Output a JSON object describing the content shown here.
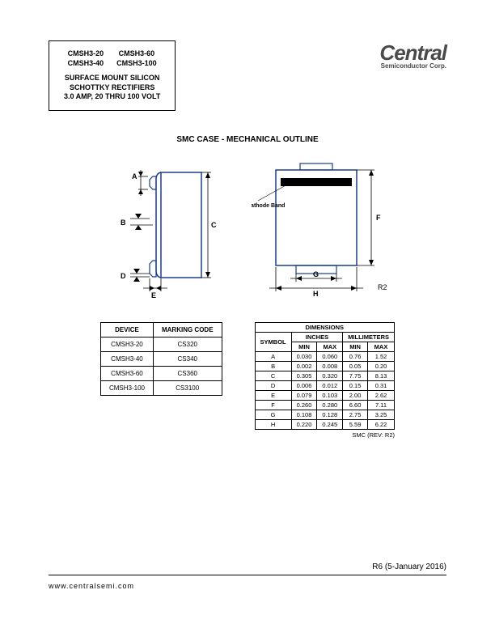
{
  "header": {
    "parts_col1": [
      "CMSH3-20",
      "CMSH3-40"
    ],
    "parts_col2": [
      "CMSH3-60",
      "CMSH3-100"
    ],
    "desc_line1": "SURFACE MOUNT SILICON",
    "desc_line2": "SCHOTTKY RECTIFIERS",
    "desc_line3": "3.0 AMP, 20 THRU 100 VOLT",
    "logo_brand": "Central",
    "logo_sub": "Semiconductor Corp."
  },
  "section_title": "SMC CASE - MECHANICAL OUTLINE",
  "drawing": {
    "outline_color": "#1a3d8f",
    "label_color": "#000000",
    "band_color": "#000000",
    "labels": {
      "A": "A",
      "B": "B",
      "C": "C",
      "D": "D",
      "E": "E",
      "F": "F",
      "G": "G",
      "H": "H",
      "R2": "R2"
    },
    "cathode_band_label": "Cathode Band"
  },
  "marking_table": {
    "headers": [
      "DEVICE",
      "MARKING CODE"
    ],
    "rows": [
      [
        "CMSH3-20",
        "CS320"
      ],
      [
        "CMSH3-40",
        "CS340"
      ],
      [
        "CMSH3-60",
        "CS360"
      ],
      [
        "CMSH3-100",
        "CS3100"
      ]
    ]
  },
  "dim_table": {
    "title": "DIMENSIONS",
    "unit_headers": [
      "INCHES",
      "MILLIMETERS"
    ],
    "sub_headers": [
      "SYMBOL",
      "MIN",
      "MAX",
      "MIN",
      "MAX"
    ],
    "rows": [
      [
        "A",
        "0.030",
        "0.060",
        "0.76",
        "1.52"
      ],
      [
        "B",
        "0.002",
        "0.008",
        "0.05",
        "0.20"
      ],
      [
        "C",
        "0.305",
        "0.320",
        "7.75",
        "8.13"
      ],
      [
        "D",
        "0.006",
        "0.012",
        "0.15",
        "0.31"
      ],
      [
        "E",
        "0.079",
        "0.103",
        "2.00",
        "2.62"
      ],
      [
        "F",
        "0.260",
        "0.280",
        "6.60",
        "7.11"
      ],
      [
        "G",
        "0.108",
        "0.128",
        "2.75",
        "3.25"
      ],
      [
        "H",
        "0.220",
        "0.245",
        "5.59",
        "6.22"
      ]
    ],
    "caption": "SMC (REV: R2)"
  },
  "footer": {
    "rev": "R6 (5-January 2016)",
    "url": "www.centralsemi.com"
  }
}
